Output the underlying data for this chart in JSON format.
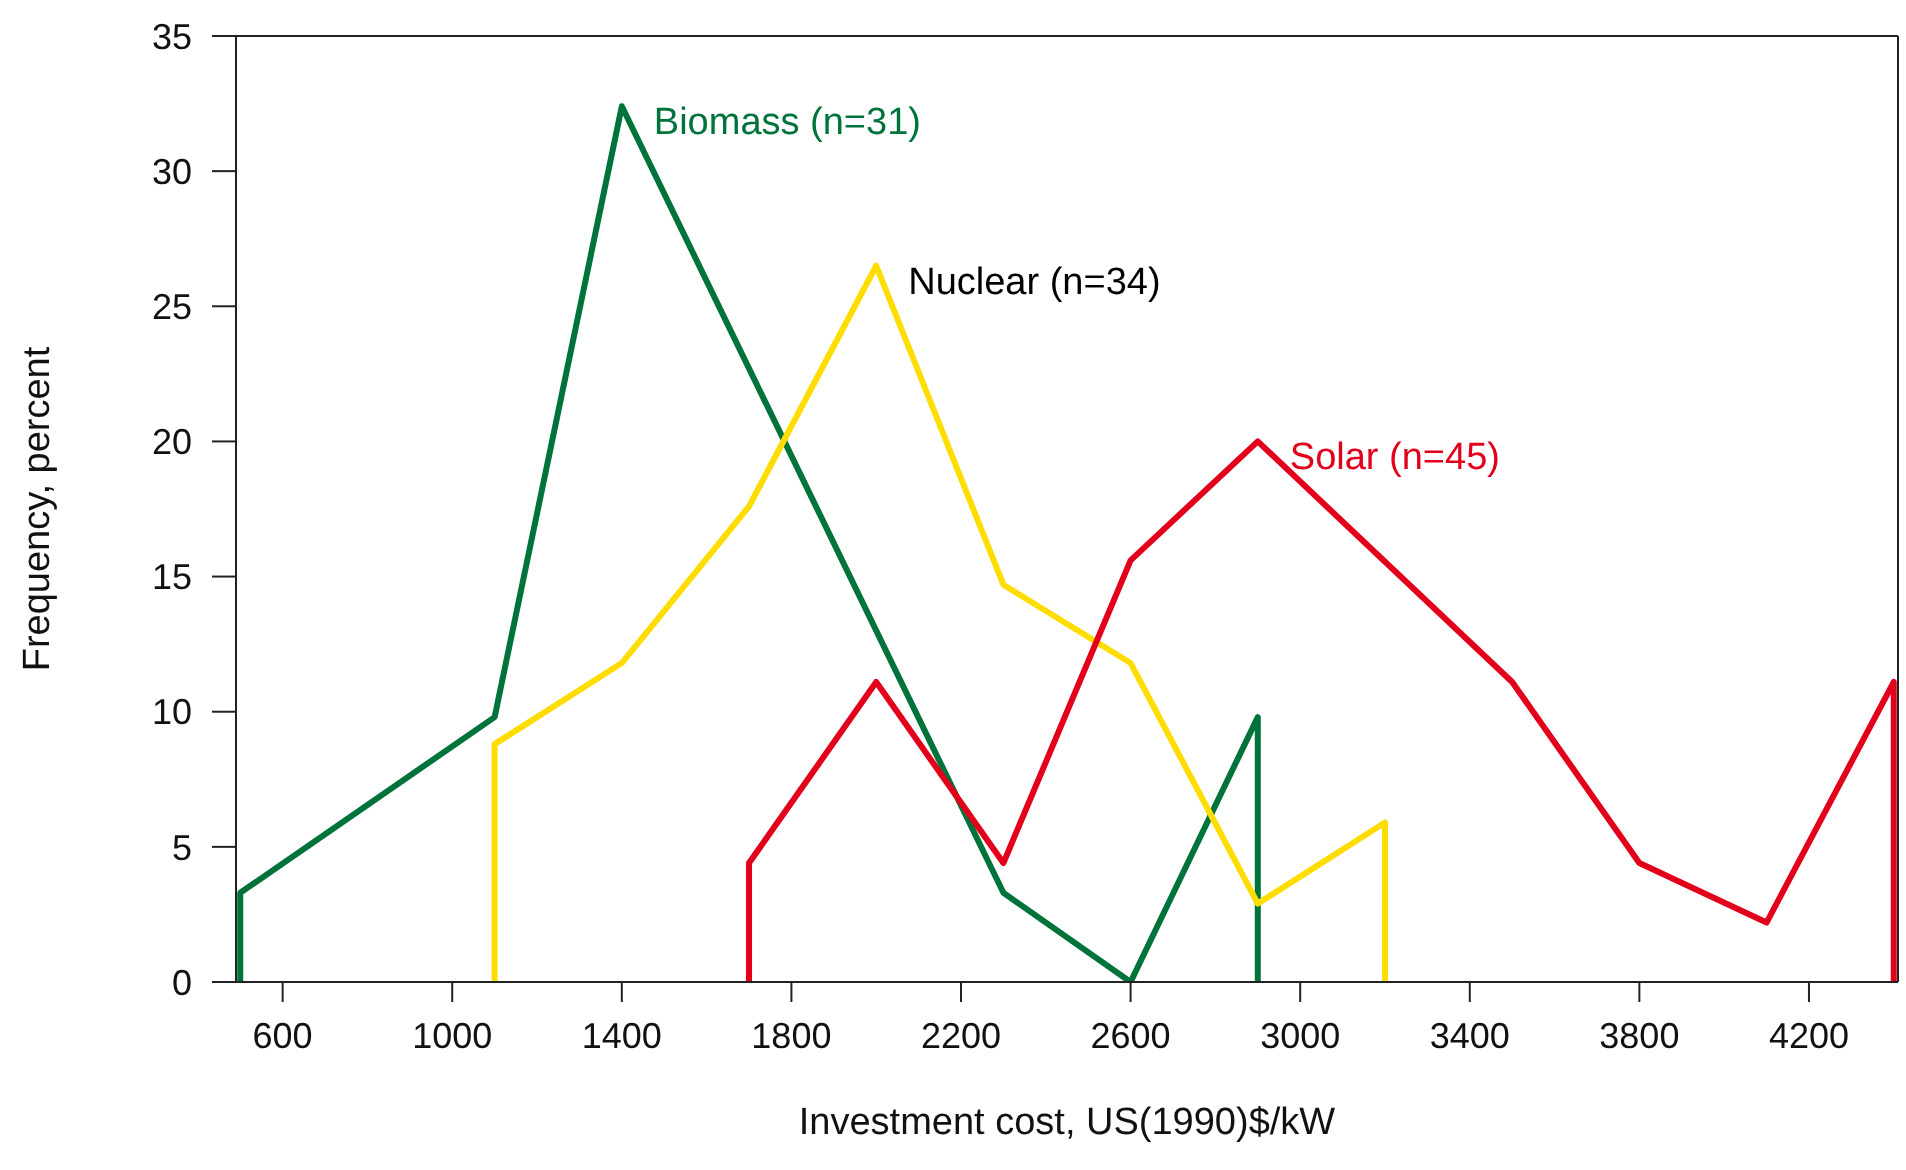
{
  "chart_data": {
    "type": "line",
    "xlabel": "Investment cost, US(1990)$/kW",
    "ylabel": "Frequency, percent",
    "xlim": [
      490,
      4410
    ],
    "xticks": [
      600,
      1000,
      1400,
      1800,
      2200,
      2600,
      3000,
      3400,
      3800,
      4200
    ],
    "ylim": [
      0,
      35
    ],
    "yticks": [
      0,
      5,
      10,
      15,
      20,
      25,
      30,
      35
    ],
    "grid": false,
    "legend": false,
    "marker": "none",
    "line_style": "solid",
    "series": [
      {
        "name": "Biomass (n=31)",
        "color": "#00733a",
        "x": [
          500,
          500,
          1100,
          1400,
          2300,
          2600,
          2900,
          2900
        ],
        "values": [
          0,
          3.3,
          9.8,
          32.4,
          3.3,
          0,
          9.8,
          0
        ]
      },
      {
        "name": "Nuclear (n=34)",
        "color": "#ffdd00",
        "x": [
          1100,
          1100,
          1400,
          1700,
          2000,
          2300,
          2600,
          2900,
          3200,
          3200
        ],
        "values": [
          0,
          8.8,
          11.8,
          17.6,
          26.5,
          14.7,
          11.8,
          2.9,
          5.9,
          0
        ]
      },
      {
        "name": "Solar (n=45)",
        "color": "#e2001a",
        "x": [
          1700,
          1700,
          2000,
          2300,
          2600,
          2900,
          3500,
          3800,
          4100,
          4400,
          4400
        ],
        "values": [
          0,
          4.4,
          11.1,
          4.4,
          15.6,
          20,
          11.1,
          4.4,
          2.2,
          11.1,
          0
        ]
      }
    ]
  }
}
